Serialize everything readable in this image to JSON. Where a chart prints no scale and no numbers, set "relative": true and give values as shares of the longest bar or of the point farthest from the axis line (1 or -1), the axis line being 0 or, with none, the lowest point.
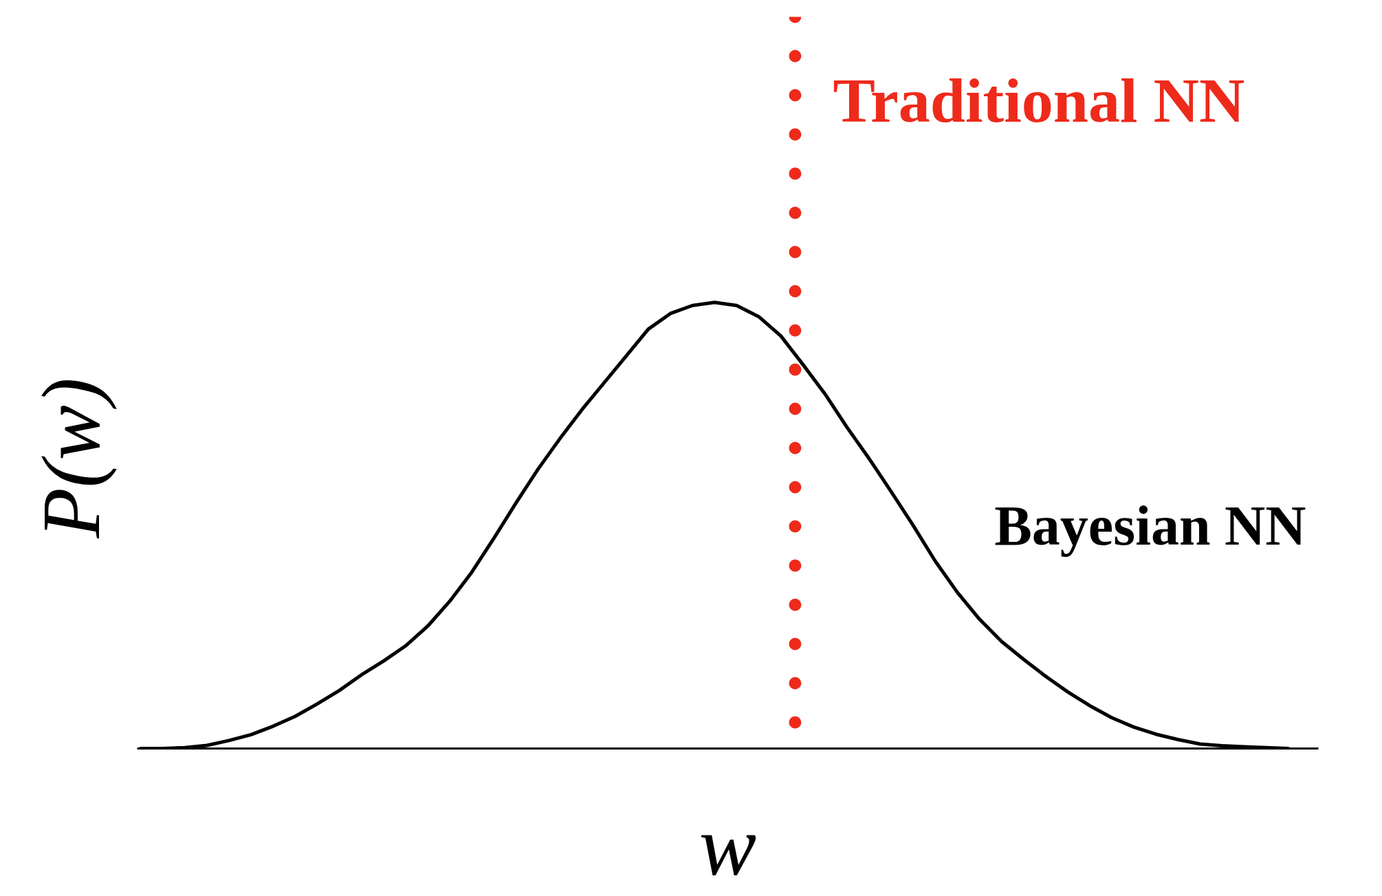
{
  "chart_data": {
    "type": "line",
    "xlabel": "w",
    "ylabel": "P(w)",
    "relative": true,
    "categories": [
      null,
      null,
      null,
      null,
      null,
      null,
      null,
      null,
      null,
      null,
      null,
      null,
      null,
      null,
      null,
      null,
      null,
      null,
      null,
      null,
      null,
      null,
      null,
      null,
      null,
      null,
      null,
      null,
      null,
      null,
      null,
      null,
      null,
      null,
      null,
      null,
      null,
      null,
      null,
      null,
      null,
      null,
      null,
      null,
      null,
      null,
      null,
      null,
      null,
      null,
      null,
      null,
      null
    ],
    "series": [
      {
        "name": "Bayesian NN",
        "color": "#000000",
        "values": [
          0,
          0,
          0.002,
          0.007,
          0.018,
          0.031,
          0.05,
          0.072,
          0.1,
          0.13,
          0.165,
          0.196,
          0.23,
          0.274,
          0.33,
          0.395,
          0.471,
          0.55,
          0.626,
          0.695,
          0.76,
          0.82,
          0.88,
          0.94,
          0.975,
          0.993,
          1.0,
          0.993,
          0.968,
          0.925,
          0.861,
          0.795,
          0.72,
          0.65,
          0.576,
          0.5,
          0.42,
          0.35,
          0.29,
          0.24,
          0.2,
          0.162,
          0.127,
          0.096,
          0.069,
          0.048,
          0.032,
          0.02,
          0.01,
          0.006,
          0.004,
          0.002,
          0
        ]
      }
    ],
    "annotations": [
      "Traditional NN"
    ]
  }
}
